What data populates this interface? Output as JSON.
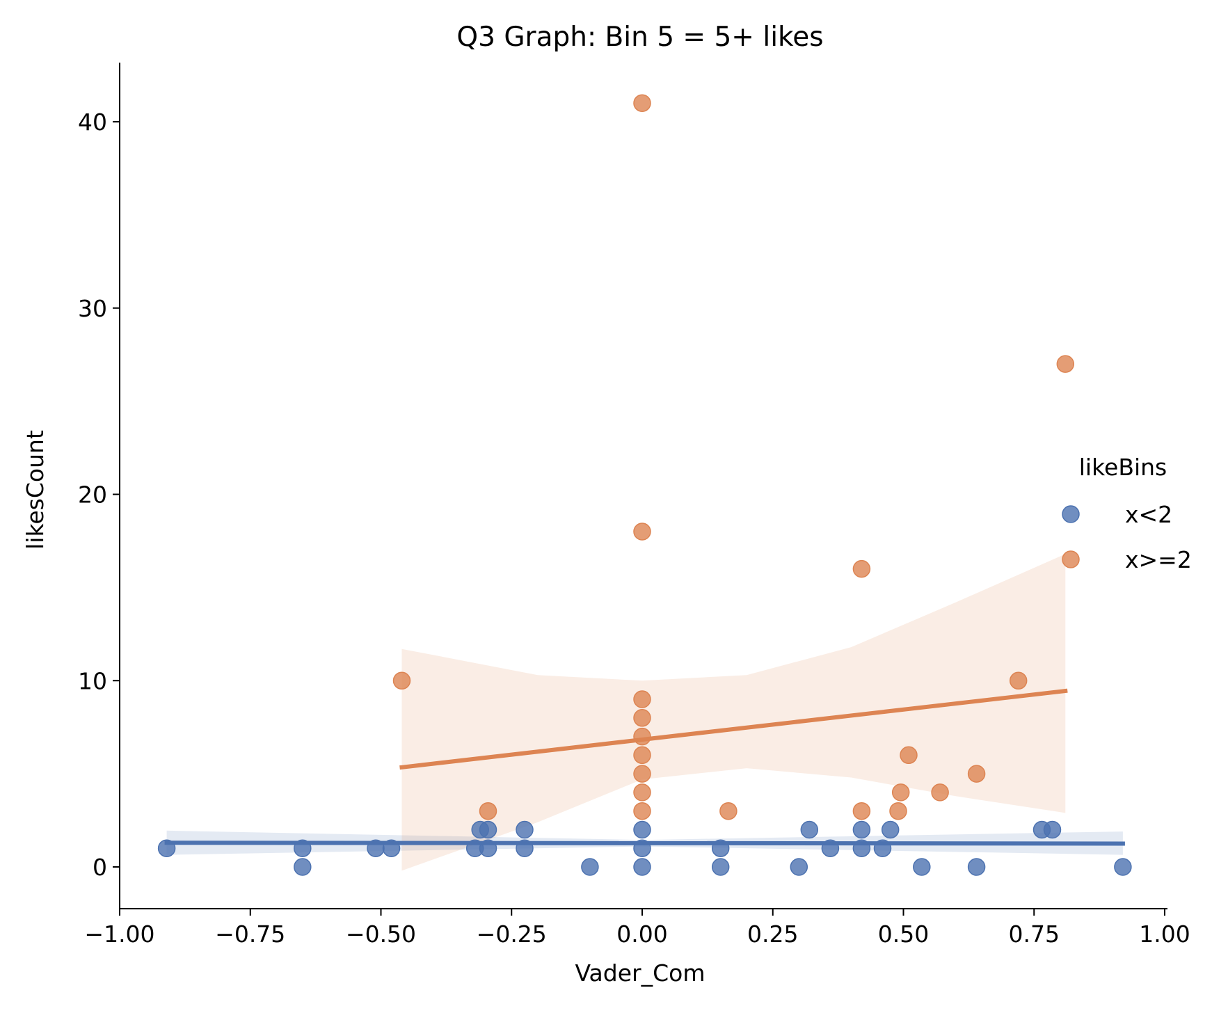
{
  "chart_data": {
    "type": "scatter",
    "title": "Q3 Graph: Bin 5 = 5+ likes",
    "xlabel": "Vader_Com",
    "ylabel": "likesCount",
    "xlim": [
      -1.0,
      1.0
    ],
    "ylim": [
      -2.2,
      43.0
    ],
    "xticks": [
      -1.0,
      -0.75,
      -0.5,
      -0.25,
      0.0,
      0.25,
      0.5,
      0.75,
      1.0
    ],
    "xtick_labels": [
      "−1.00",
      "−0.75",
      "−0.50",
      "−0.25",
      "0.00",
      "0.25",
      "0.50",
      "0.75",
      "1.00"
    ],
    "yticks": [
      0,
      10,
      20,
      30,
      40
    ],
    "ytick_labels": [
      "0",
      "10",
      "20",
      "30",
      "40"
    ],
    "grid": false,
    "legend": {
      "title": "likeBins",
      "placement": "right"
    },
    "series": [
      {
        "name": "x<2",
        "color": "#4c72b0",
        "points": [
          [
            -0.91,
            1
          ],
          [
            -0.65,
            1
          ],
          [
            -0.65,
            0
          ],
          [
            -0.51,
            1
          ],
          [
            -0.48,
            1
          ],
          [
            -0.32,
            1
          ],
          [
            -0.31,
            2
          ],
          [
            -0.295,
            2
          ],
          [
            -0.295,
            1
          ],
          [
            -0.225,
            2
          ],
          [
            -0.225,
            1
          ],
          [
            -0.1,
            0
          ],
          [
            0.0,
            0
          ],
          [
            0.0,
            1
          ],
          [
            0.0,
            2
          ],
          [
            0.15,
            1
          ],
          [
            0.15,
            0
          ],
          [
            0.3,
            0
          ],
          [
            0.32,
            2
          ],
          [
            0.36,
            1
          ],
          [
            0.42,
            2
          ],
          [
            0.42,
            1
          ],
          [
            0.46,
            1
          ],
          [
            0.475,
            2
          ],
          [
            0.535,
            0
          ],
          [
            0.64,
            0
          ],
          [
            0.765,
            2
          ],
          [
            0.785,
            2
          ],
          [
            0.92,
            0
          ]
        ],
        "regression": {
          "x": [
            -0.91,
            0.92
          ],
          "y": [
            1.3,
            1.25
          ]
        },
        "ci_band": {
          "x": [
            -0.91,
            0.0,
            0.92
          ],
          "upper": [
            1.95,
            1.45,
            1.9
          ],
          "lower": [
            0.65,
            1.1,
            0.65
          ]
        }
      },
      {
        "name": "x>=2",
        "color": "#dd8452",
        "points": [
          [
            -0.46,
            10
          ],
          [
            -0.295,
            3
          ],
          [
            0.0,
            41
          ],
          [
            0.0,
            18
          ],
          [
            0.0,
            9
          ],
          [
            0.0,
            8
          ],
          [
            0.0,
            7
          ],
          [
            0.0,
            6
          ],
          [
            0.0,
            5
          ],
          [
            0.0,
            4
          ],
          [
            0.0,
            3
          ],
          [
            0.165,
            3
          ],
          [
            0.42,
            16
          ],
          [
            0.42,
            3
          ],
          [
            0.49,
            3
          ],
          [
            0.495,
            4
          ],
          [
            0.51,
            6
          ],
          [
            0.57,
            4
          ],
          [
            0.64,
            5
          ],
          [
            0.72,
            10
          ],
          [
            0.81,
            27
          ]
        ],
        "regression": {
          "x": [
            -0.46,
            0.81
          ],
          "y": [
            5.35,
            9.45
          ]
        },
        "ci_band": {
          "x": [
            -0.46,
            -0.2,
            0.0,
            0.2,
            0.4,
            0.6,
            0.81
          ],
          "upper": [
            11.7,
            10.3,
            10.0,
            10.3,
            11.8,
            14.2,
            16.8
          ],
          "lower": [
            -0.2,
            2.4,
            4.7,
            5.3,
            4.8,
            3.8,
            2.9
          ]
        }
      }
    ]
  }
}
